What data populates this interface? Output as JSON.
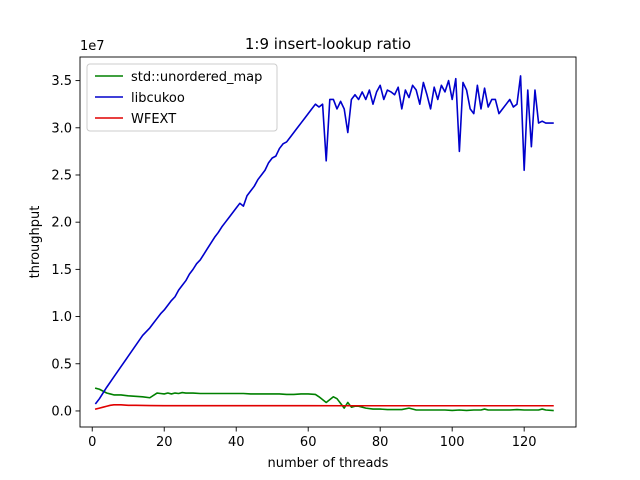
{
  "chart_data": {
    "type": "line",
    "title": "1:9 insert-lookup ratio",
    "xlabel": "number of threads",
    "ylabel": "throughput",
    "y_offset_label": "1e7",
    "xlim": [
      -3.4,
      134.4
    ],
    "ylim": [
      -0.17,
      3.75
    ],
    "x_ticks": [
      0,
      20,
      40,
      60,
      80,
      100,
      120
    ],
    "y_ticks": [
      0.0,
      0.5,
      1.0,
      1.5,
      2.0,
      2.5,
      3.0,
      3.5
    ],
    "y_tick_labels": [
      "0.0",
      "0.5",
      "1.0",
      "1.5",
      "2.0",
      "2.5",
      "3.0",
      "3.5"
    ],
    "grid": false,
    "legend_position": "top-left",
    "series": [
      {
        "name": "std::unordered_map",
        "color": "#008000",
        "x": [
          1,
          2,
          3,
          4,
          5,
          6,
          8,
          10,
          12,
          14,
          16,
          18,
          19,
          20,
          21,
          22,
          23,
          24,
          25,
          26,
          28,
          30,
          32,
          34,
          36,
          38,
          40,
          42,
          44,
          46,
          48,
          50,
          52,
          54,
          56,
          58,
          60,
          62,
          63,
          64,
          65,
          66,
          67,
          68,
          69,
          70,
          71,
          72,
          73,
          74,
          76,
          78,
          80,
          82,
          84,
          86,
          88,
          90,
          92,
          94,
          96,
          98,
          100,
          102,
          104,
          106,
          108,
          109,
          110,
          112,
          114,
          116,
          118,
          120,
          122,
          124,
          125,
          126,
          128
        ],
        "y": [
          0.24,
          0.23,
          0.21,
          0.19,
          0.18,
          0.17,
          0.17,
          0.16,
          0.155,
          0.15,
          0.14,
          0.19,
          0.185,
          0.18,
          0.19,
          0.18,
          0.19,
          0.185,
          0.195,
          0.19,
          0.19,
          0.185,
          0.185,
          0.185,
          0.185,
          0.185,
          0.185,
          0.185,
          0.18,
          0.18,
          0.18,
          0.18,
          0.18,
          0.175,
          0.175,
          0.18,
          0.18,
          0.175,
          0.15,
          0.12,
          0.09,
          0.12,
          0.15,
          0.13,
          0.08,
          0.03,
          0.09,
          0.04,
          0.05,
          0.05,
          0.03,
          0.02,
          0.02,
          0.015,
          0.015,
          0.015,
          0.03,
          0.01,
          0.01,
          0.01,
          0.01,
          0.01,
          0.005,
          0.01,
          0.005,
          0.01,
          0.01,
          0.02,
          0.01,
          0.01,
          0.01,
          0.01,
          0.015,
          0.01,
          0.01,
          0.01,
          0.02,
          0.01,
          0.005
        ]
      },
      {
        "name": "libcukoo",
        "color": "#0000cc",
        "x": [
          1,
          2,
          4,
          6,
          8,
          10,
          12,
          14,
          15,
          16,
          17,
          18,
          19,
          20,
          21,
          22,
          23,
          24,
          25,
          26,
          27,
          28,
          29,
          30,
          31,
          32,
          33,
          34,
          35,
          36,
          37,
          38,
          39,
          40,
          41,
          42,
          43,
          44,
          45,
          46,
          47,
          48,
          49,
          50,
          51,
          52,
          53,
          54,
          55,
          56,
          57,
          58,
          59,
          60,
          61,
          62,
          63,
          64,
          65,
          66,
          67,
          68,
          69,
          70,
          71,
          72,
          73,
          74,
          75,
          76,
          77,
          78,
          79,
          80,
          81,
          82,
          83,
          84,
          85,
          86,
          87,
          88,
          89,
          90,
          91,
          92,
          93,
          94,
          95,
          96,
          97,
          98,
          99,
          100,
          101,
          102,
          103,
          104,
          105,
          106,
          107,
          108,
          109,
          110,
          111,
          112,
          113,
          114,
          115,
          116,
          117,
          118,
          119,
          120,
          121,
          122,
          123,
          124,
          125,
          126,
          127,
          128
        ],
        "y": [
          0.08,
          0.13,
          0.25,
          0.36,
          0.47,
          0.58,
          0.69,
          0.8,
          0.84,
          0.88,
          0.93,
          0.98,
          1.03,
          1.07,
          1.12,
          1.17,
          1.21,
          1.28,
          1.33,
          1.38,
          1.45,
          1.5,
          1.56,
          1.6,
          1.66,
          1.72,
          1.78,
          1.84,
          1.89,
          1.95,
          2.0,
          2.05,
          2.1,
          2.15,
          2.2,
          2.17,
          2.28,
          2.33,
          2.38,
          2.45,
          2.5,
          2.55,
          2.63,
          2.68,
          2.7,
          2.78,
          2.83,
          2.85,
          2.9,
          2.95,
          3.0,
          3.05,
          3.1,
          3.15,
          3.2,
          3.25,
          3.22,
          3.25,
          2.65,
          3.3,
          3.3,
          3.2,
          3.28,
          3.2,
          2.95,
          3.3,
          3.35,
          3.3,
          3.38,
          3.3,
          3.4,
          3.25,
          3.38,
          3.45,
          3.3,
          3.4,
          3.38,
          3.35,
          3.43,
          3.2,
          3.4,
          3.32,
          3.45,
          3.4,
          3.25,
          3.48,
          3.35,
          3.2,
          3.43,
          3.3,
          3.45,
          3.38,
          3.5,
          3.3,
          3.52,
          2.75,
          3.48,
          3.4,
          3.2,
          3.15,
          3.45,
          3.2,
          3.42,
          3.22,
          3.3,
          3.3,
          3.15,
          3.2,
          3.25,
          3.3,
          3.22,
          3.25,
          3.55,
          2.55,
          3.4,
          2.8,
          3.4,
          3.05,
          3.07,
          3.05,
          3.05,
          3.05
        ],
        "hidden_note_ignore": ""
      },
      {
        "name": "WFEXT",
        "color": "#e00000",
        "x": [
          1,
          2,
          3,
          4,
          5,
          6,
          7,
          8,
          10,
          12,
          14,
          16,
          20,
          24,
          28,
          32,
          36,
          40,
          50,
          60,
          70,
          80,
          90,
          100,
          110,
          120,
          128
        ],
        "y": [
          0.02,
          0.03,
          0.04,
          0.05,
          0.06,
          0.065,
          0.065,
          0.065,
          0.06,
          0.06,
          0.058,
          0.057,
          0.056,
          0.056,
          0.056,
          0.056,
          0.056,
          0.056,
          0.056,
          0.056,
          0.055,
          0.055,
          0.055,
          0.055,
          0.055,
          0.055,
          0.055
        ]
      }
    ]
  }
}
